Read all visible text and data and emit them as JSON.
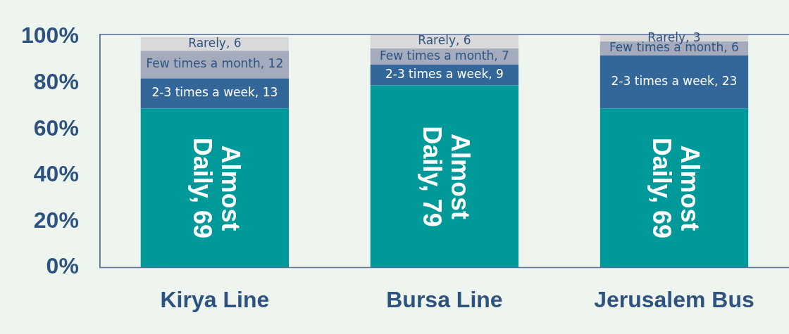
{
  "chart_data": {
    "type": "bar",
    "stacked": true,
    "categories": [
      "Kirya Line",
      "Bursa Line",
      "Jerusalem Bus"
    ],
    "series": [
      {
        "color": "#009999",
        "values": [
          69,
          79,
          69
        ],
        "value_labels": [
          "Almost Daily, 69",
          "Almost Daily, 79",
          "Almost Daily, 69"
        ]
      },
      {
        "color": "#336699",
        "values": [
          13,
          9,
          23
        ],
        "value_labels": [
          "2-3 times a week, 13",
          "2-3 times a week, 9",
          "2-3 times a week, 23"
        ]
      },
      {
        "color": "#a3abbd",
        "values": [
          12,
          7,
          6
        ],
        "value_labels": [
          "Few times a month, 12",
          "Few times a month, 7",
          "Few times a month, 6"
        ]
      },
      {
        "color": "#d9d9d9",
        "values": [
          6,
          6,
          3
        ],
        "value_labels": [
          "Rarely, 6",
          "Rarely, 6",
          "Rarely, 3"
        ]
      }
    ],
    "ylim": [
      0,
      101
    ],
    "yticks": [
      {
        "value": 0,
        "label": "0%"
      },
      {
        "value": 20,
        "label": "20%"
      },
      {
        "value": 40,
        "label": "40%"
      },
      {
        "value": 60,
        "label": "60%"
      },
      {
        "value": 80,
        "label": "80%"
      },
      {
        "value": 100,
        "label": "100%"
      }
    ],
    "grid": false,
    "legend": false
  }
}
